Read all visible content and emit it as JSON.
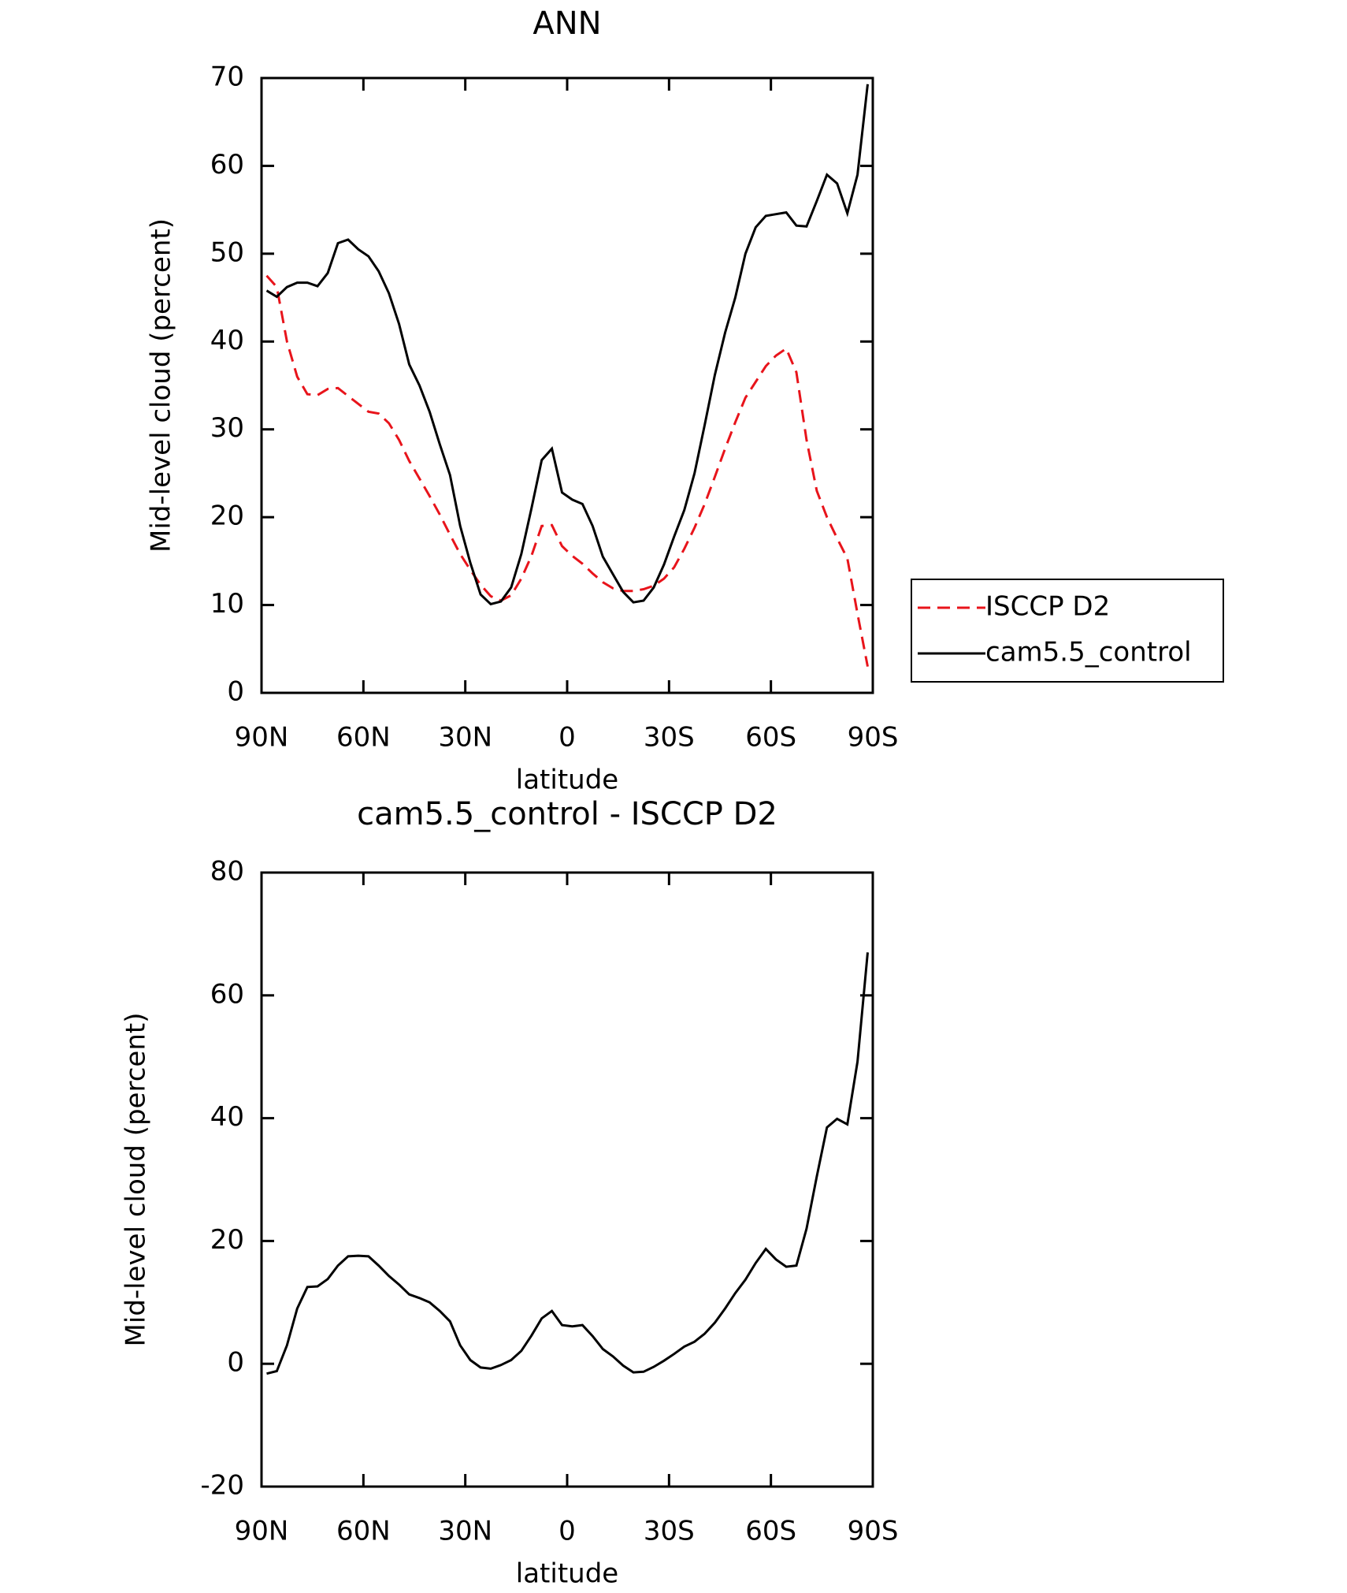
{
  "chart_data": [
    {
      "type": "line",
      "title": "ANN",
      "xlabel": "latitude",
      "ylabel": "Mid-level cloud (percent)",
      "x": [
        88.5,
        85.5,
        82.5,
        79.5,
        76.5,
        73.5,
        70.5,
        67.5,
        64.5,
        61.5,
        58.5,
        55.5,
        52.5,
        49.5,
        46.5,
        43.5,
        40.5,
        37.5,
        34.5,
        31.5,
        28.5,
        25.5,
        22.5,
        19.5,
        16.5,
        13.5,
        10.5,
        7.5,
        4.5,
        1.5,
        -1.5,
        -4.5,
        -7.5,
        -10.5,
        -13.5,
        -16.5,
        -19.5,
        -22.5,
        -25.5,
        -28.5,
        -31.5,
        -34.5,
        -37.5,
        -40.5,
        -43.5,
        -46.5,
        -49.5,
        -52.5,
        -55.5,
        -58.5,
        -61.5,
        -64.5,
        -67.5,
        -70.5,
        -73.5,
        -76.5,
        -79.5,
        -82.5,
        -85.5,
        -88.5
      ],
      "series": [
        {
          "name": "ISCCP D2",
          "color": "#e8141b",
          "line_style": "dashed",
          "values": [
            47.5,
            46.2,
            40,
            36,
            34,
            33.9,
            34.6,
            34.7,
            33.8,
            32.9,
            32,
            31.8,
            30.7,
            28.8,
            26.4,
            24.4,
            22.4,
            20.3,
            18,
            15.8,
            14,
            12.3,
            11,
            10.5,
            11.1,
            13,
            15.6,
            19,
            19.1,
            16.7,
            15.6,
            14.7,
            13.6,
            12.6,
            11.9,
            11.6,
            11.6,
            11.8,
            12.2,
            13,
            14.3,
            16.4,
            18.8,
            21.5,
            24.6,
            27.8,
            30.8,
            33.6,
            35.4,
            37.2,
            38.4,
            39.2,
            36.5,
            28.8,
            23,
            20,
            17.6,
            15.3,
            9,
            3
          ]
        },
        {
          "name": "cam5.5_control",
          "color": "#000000",
          "line_style": "solid",
          "values": [
            45.8,
            45.1,
            46.2,
            46.7,
            46.7,
            46.3,
            47.8,
            51.2,
            51.6,
            50.5,
            49.7,
            48,
            45.5,
            42,
            37.4,
            35,
            32,
            28.3,
            24.8,
            19,
            14.8,
            11.2,
            10.1,
            10.4,
            12,
            15.8,
            21,
            26.5,
            27.8,
            22.8,
            22,
            21.5,
            19,
            15.5,
            13.5,
            11.5,
            10.3,
            10.5,
            12,
            14.6,
            17.8,
            20.8,
            25,
            30.5,
            36.2,
            41,
            45,
            50,
            53,
            54.3,
            54.5,
            54.7,
            53.2,
            53.1,
            56,
            59,
            58,
            54.6,
            59,
            69.3
          ]
        }
      ],
      "xlim": [
        90,
        -90
      ],
      "xticks": [
        {
          "value": 90,
          "label": "90N"
        },
        {
          "value": 60,
          "label": "60N"
        },
        {
          "value": 30,
          "label": "30N"
        },
        0,
        {
          "value": -30,
          "label": "30S"
        },
        {
          "value": -60,
          "label": "60S"
        },
        {
          "value": -90,
          "label": "90S"
        }
      ],
      "ylim": [
        0,
        70
      ],
      "yticks": [
        0,
        10,
        20,
        30,
        40,
        50,
        60,
        70
      ],
      "legend": "right"
    },
    {
      "type": "line",
      "title": "cam5.5_control - ISCCP D2",
      "xlabel": "latitude",
      "ylabel": "Mid-level cloud (percent)",
      "x": [
        88.5,
        85.5,
        82.5,
        79.5,
        76.5,
        73.5,
        70.5,
        67.5,
        64.5,
        61.5,
        58.5,
        55.5,
        52.5,
        49.5,
        46.5,
        43.5,
        40.5,
        37.5,
        34.5,
        31.5,
        28.5,
        25.5,
        22.5,
        19.5,
        16.5,
        13.5,
        10.5,
        7.5,
        4.5,
        1.5,
        -1.5,
        -4.5,
        -7.5,
        -10.5,
        -13.5,
        -16.5,
        -19.5,
        -22.5,
        -25.5,
        -28.5,
        -31.5,
        -34.5,
        -37.5,
        -40.5,
        -43.5,
        -46.5,
        -49.5,
        -52.5,
        -55.5,
        -58.5,
        -61.5,
        -64.5,
        -67.5,
        -70.5,
        -73.5,
        -76.5,
        -79.5,
        -82.5,
        -85.5,
        -88.5
      ],
      "series": [
        {
          "color": "#000000",
          "line_style": "solid",
          "values": [
            -1.6,
            -1.2,
            3,
            9,
            12.5,
            12.6,
            13.8,
            16,
            17.5,
            17.6,
            17.5,
            16,
            14.3,
            12.9,
            11.3,
            10.7,
            10,
            8.6,
            6.9,
            3,
            0.6,
            -0.6,
            -0.8,
            -0.2,
            0.6,
            2.1,
            4.6,
            7.4,
            8.6,
            6.3,
            6.1,
            6.3,
            4.5,
            2.4,
            1.2,
            -0.3,
            -1.4,
            -1.3,
            -0.5,
            0.5,
            1.6,
            2.8,
            3.6,
            4.9,
            6.7,
            9,
            11.5,
            13.7,
            16.4,
            18.7,
            17,
            15.8,
            16,
            22,
            30.5,
            38.5,
            39.9,
            39,
            49.2,
            67
          ]
        }
      ],
      "xlim": [
        90,
        -90
      ],
      "xticks": [
        {
          "value": 90,
          "label": "90N"
        },
        {
          "value": 60,
          "label": "60N"
        },
        {
          "value": 30,
          "label": "30N"
        },
        0,
        {
          "value": -30,
          "label": "30S"
        },
        {
          "value": -60,
          "label": "60S"
        },
        {
          "value": -90,
          "label": "90S"
        }
      ],
      "ylim": [
        -20,
        80
      ],
      "yticks": [
        -20,
        0,
        20,
        40,
        60,
        80
      ]
    }
  ]
}
